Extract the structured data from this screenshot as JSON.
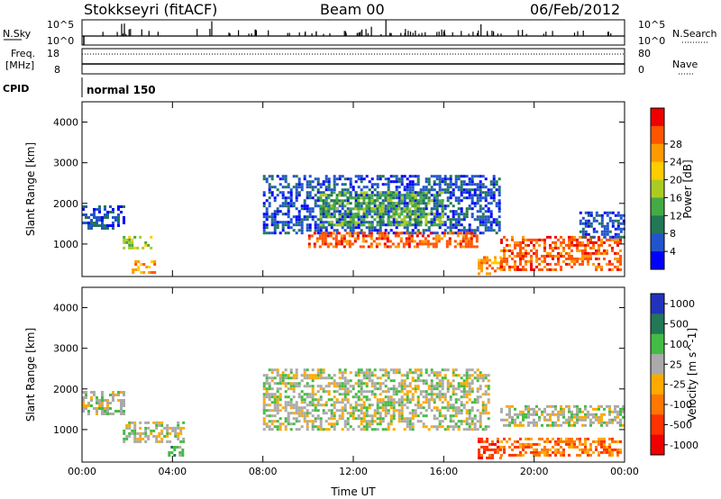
{
  "header": {
    "station": "Stokkseyri (fitACF)",
    "beam": "Beam 00",
    "date": "06/Feb/2012"
  },
  "info_panels": {
    "nsky": {
      "label": "N.Sky",
      "left_ticks": [
        "10^5",
        "10^0"
      ],
      "right_label": "N.Search",
      "right_ticks": [
        "10^5",
        "10^0"
      ]
    },
    "freq": {
      "label_line1": "Freq.",
      "label_line2": "[MHz]",
      "left_ticks": [
        "18",
        "8"
      ],
      "right_label": "Nave",
      "right_ticks": [
        "80",
        "0"
      ]
    },
    "cpid": {
      "label": "CPID",
      "value": "normal 150"
    }
  },
  "chart_data": [
    {
      "type": "heatmap",
      "name": "power",
      "xlabel": "",
      "ylabel": "Slant Range [km]",
      "xlim": [
        0,
        24
      ],
      "ylim": [
        200,
        4500
      ],
      "yticks": [
        "1000",
        "2000",
        "3000",
        "4000"
      ],
      "colorbar": {
        "label": "Power [dB]",
        "ticks": [
          "4",
          "8",
          "12",
          "16",
          "20",
          "24",
          "28"
        ],
        "colors": [
          "#0000ff",
          "#2255cc",
          "#227755",
          "#44aa44",
          "#aacc22",
          "#ffcc00",
          "#ff9900",
          "#ff5500",
          "#ee0000"
        ]
      },
      "regions": [
        {
          "t0": 0.0,
          "t1": 1.8,
          "r0": 1400,
          "r1": 1950,
          "level": 1
        },
        {
          "t0": 1.8,
          "t1": 3.0,
          "r0": 900,
          "r1": 1200,
          "level": 4
        },
        {
          "t0": 2.2,
          "t1": 3.2,
          "r0": 300,
          "r1": 600,
          "level": 6
        },
        {
          "t0": 8.0,
          "t1": 18.5,
          "r0": 1300,
          "r1": 2700,
          "level": 1
        },
        {
          "t0": 10.5,
          "t1": 16.0,
          "r0": 1500,
          "r1": 2300,
          "level": 3
        },
        {
          "t0": 10.0,
          "t1": 17.5,
          "r0": 950,
          "r1": 1300,
          "level": 7
        },
        {
          "t0": 17.5,
          "t1": 18.5,
          "r0": 300,
          "r1": 700,
          "level": 6
        },
        {
          "t0": 18.5,
          "t1": 23.8,
          "r0": 400,
          "r1": 1200,
          "level": 7
        },
        {
          "t0": 22.0,
          "t1": 24.0,
          "r0": 1200,
          "r1": 1800,
          "level": 1
        }
      ]
    },
    {
      "type": "heatmap",
      "name": "velocity",
      "xlabel": "Time UT",
      "ylabel": "Slant Range [km]",
      "xlim": [
        0,
        24
      ],
      "ylim": [
        200,
        4500
      ],
      "xticks": [
        "00:00",
        "04:00",
        "08:00",
        "12:00",
        "16:00",
        "20:00",
        "00:00"
      ],
      "yticks": [
        "1000",
        "2000",
        "3000",
        "4000"
      ],
      "colorbar": {
        "label": "Velocity [m s^-1]",
        "ticks": [
          "1000",
          "500",
          "100",
          "25",
          "-25",
          "-100",
          "-500",
          "-1000"
        ],
        "colors": [
          "#2233bb",
          "#227755",
          "#44bb44",
          "#aaaaaa",
          "#ffaa00",
          "#ff7700",
          "#ff3300",
          "#ee0000"
        ]
      },
      "regions": [
        {
          "t0": 0.0,
          "t1": 1.8,
          "r0": 1400,
          "r1": 1950,
          "level": 3
        },
        {
          "t0": 1.8,
          "t1": 4.5,
          "r0": 700,
          "r1": 1200,
          "level": 3
        },
        {
          "t0": 3.8,
          "t1": 4.5,
          "r0": 400,
          "r1": 600,
          "level": 2
        },
        {
          "t0": 8.0,
          "t1": 18.0,
          "r0": 1000,
          "r1": 2500,
          "level": 3
        },
        {
          "t0": 17.5,
          "t1": 18.5,
          "r0": 300,
          "r1": 800,
          "level": 6
        },
        {
          "t0": 18.5,
          "t1": 23.8,
          "r0": 400,
          "r1": 800,
          "level": 5
        },
        {
          "t0": 18.5,
          "t1": 24.0,
          "r0": 1100,
          "r1": 1600,
          "level": 3
        }
      ]
    }
  ]
}
